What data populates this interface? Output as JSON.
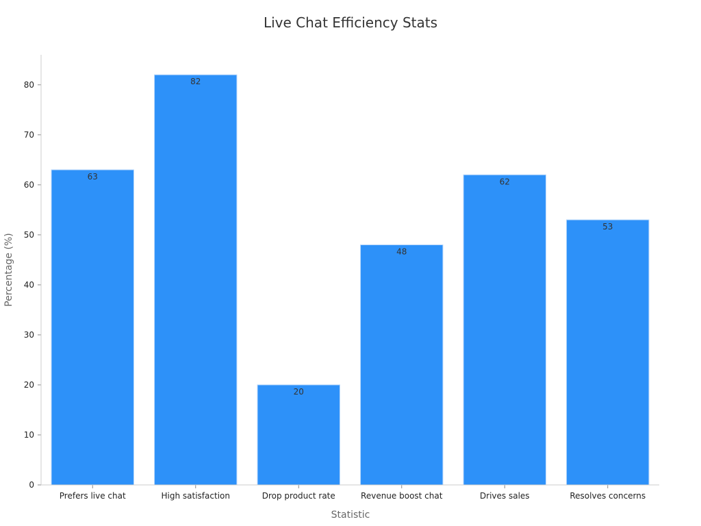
{
  "chart_data": {
    "type": "bar",
    "title": "Live Chat Efficiency Stats",
    "xlabel": "Statistic",
    "ylabel": "Percentage (%)",
    "categories": [
      "Prefers live chat",
      "High satisfaction",
      "Drop product rate",
      "Revenue boost chat",
      "Drives sales",
      "Resolves concerns"
    ],
    "values": [
      63,
      82,
      20,
      48,
      62,
      53
    ],
    "ylim": [
      0,
      86
    ],
    "yticks": [
      0,
      10,
      20,
      30,
      40,
      50,
      60,
      70,
      80
    ],
    "grid": false,
    "bar_color": "#2d91f9"
  }
}
